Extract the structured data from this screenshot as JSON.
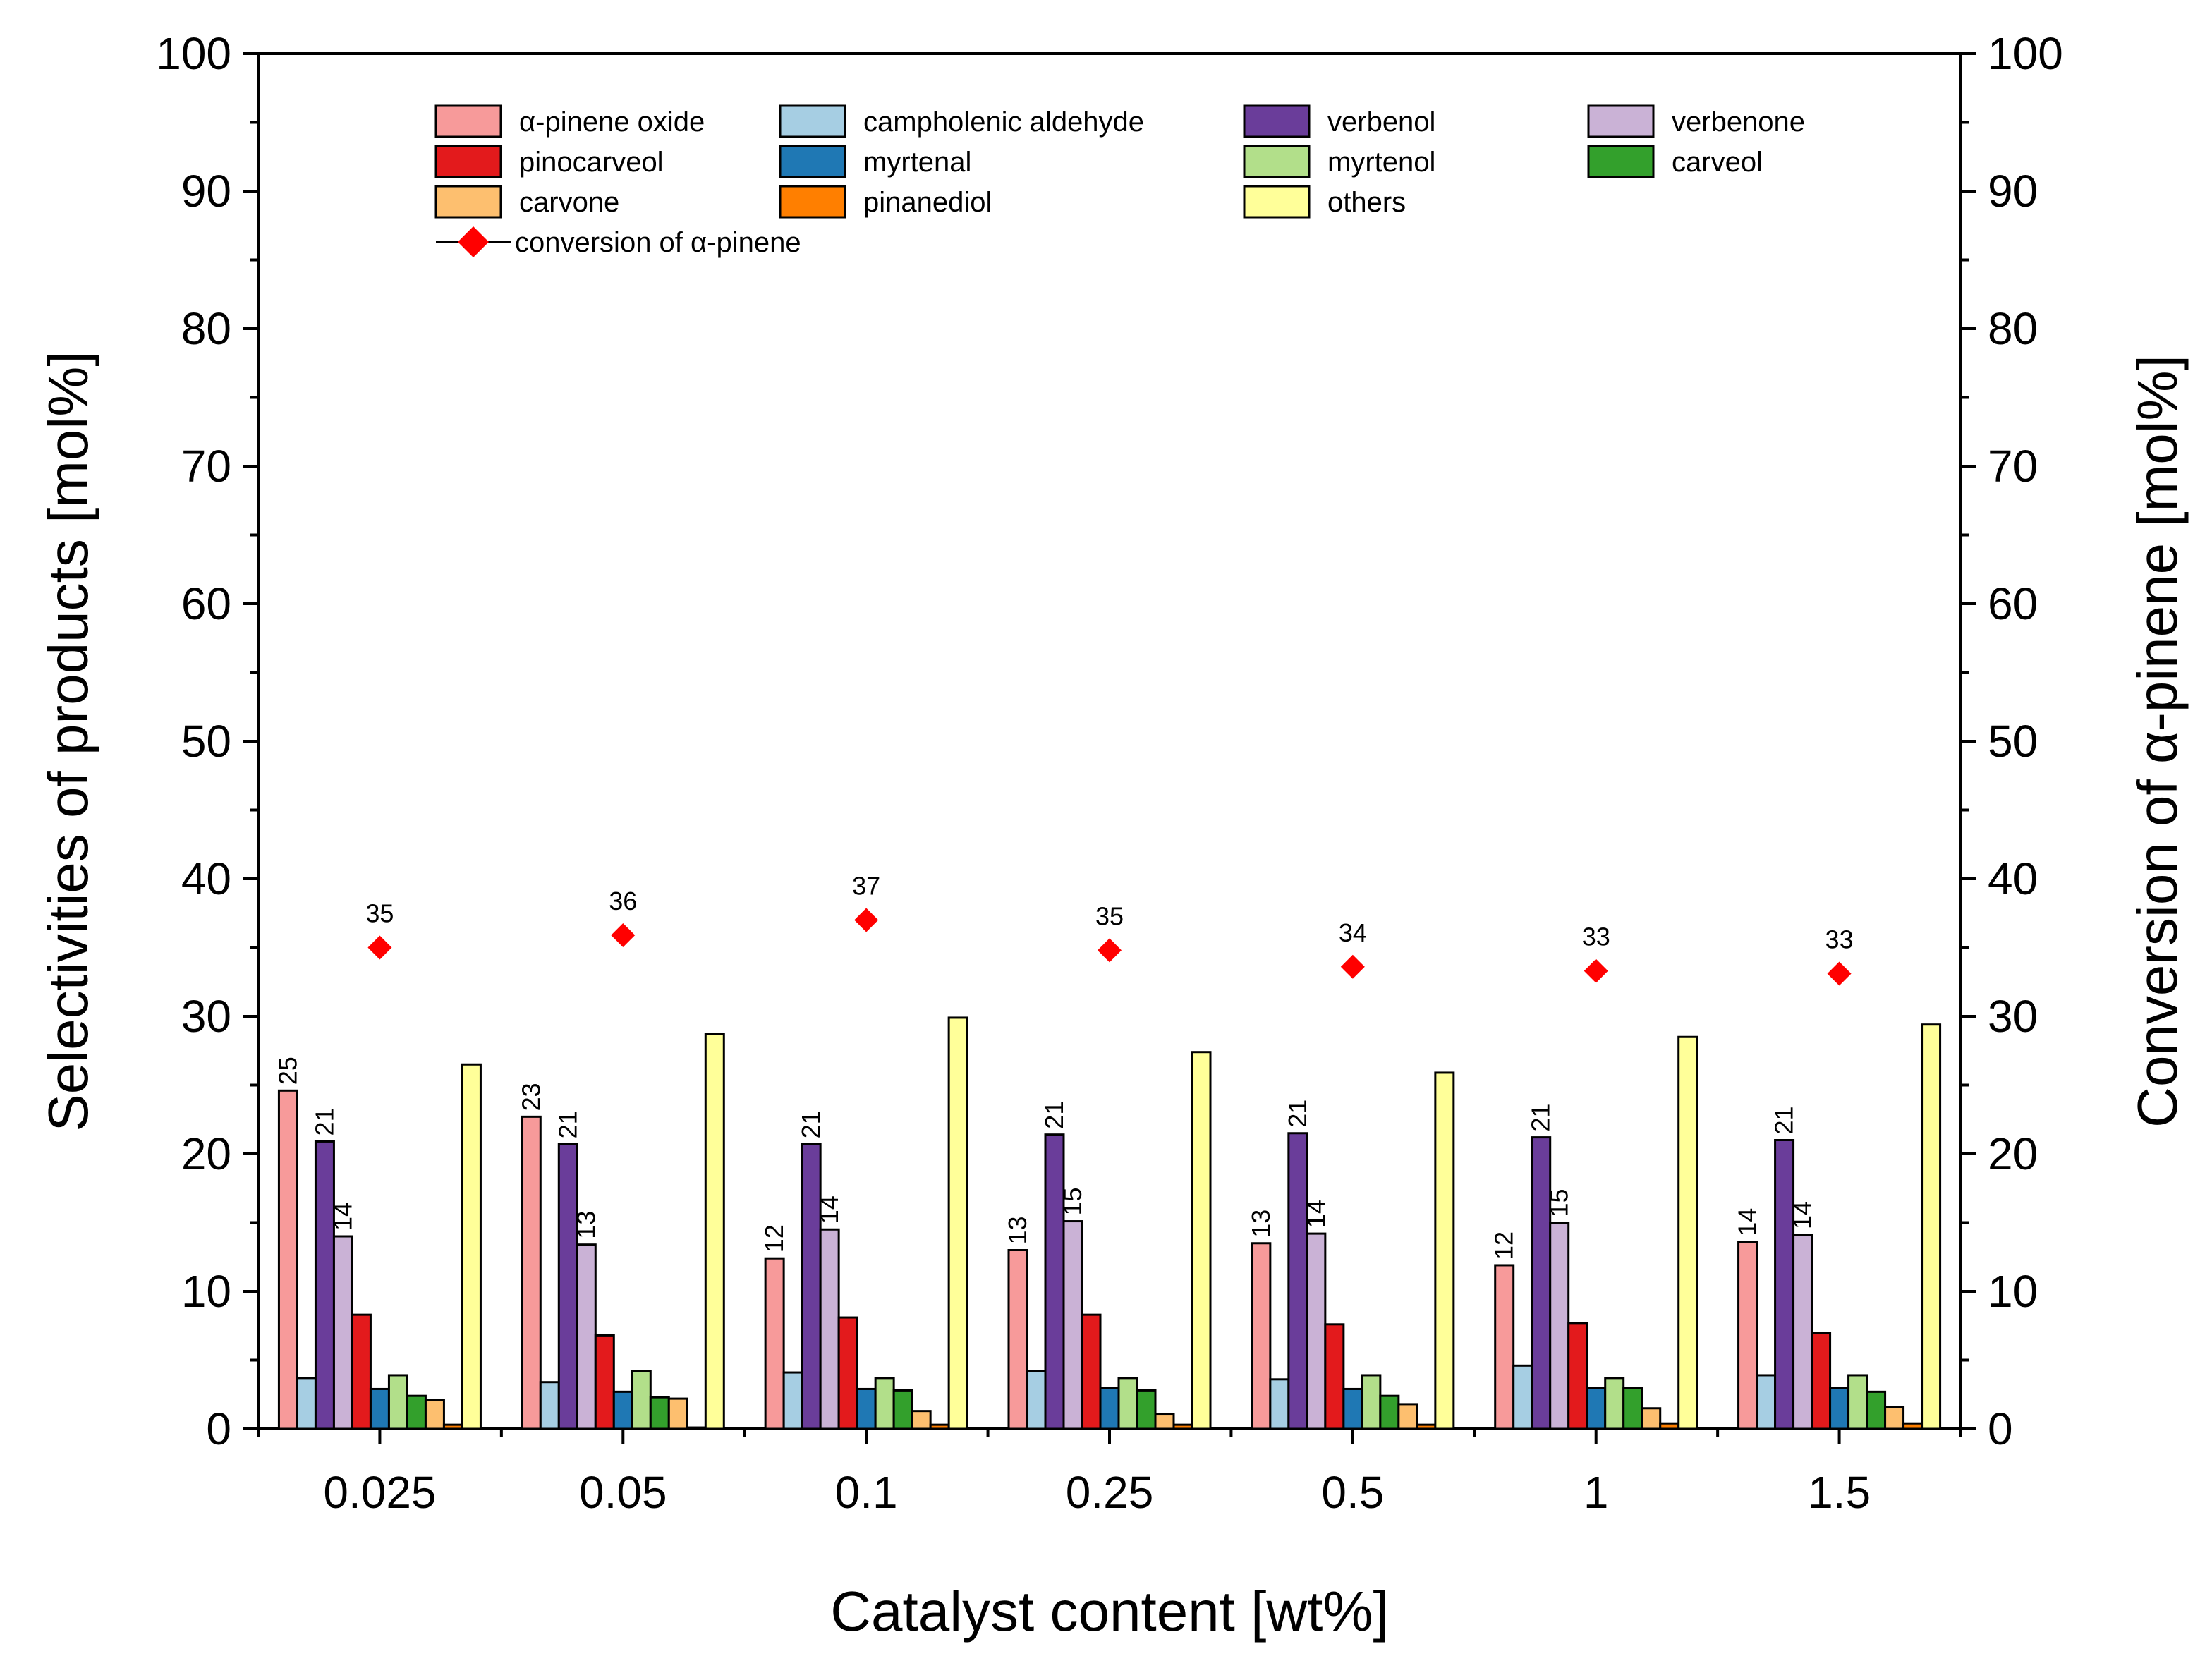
{
  "chart_data": {
    "type": "bar",
    "title": "",
    "xlabel": "Catalyst content [wt%]",
    "ylabel": "Selectivities of products [mol%]",
    "y2label": "Conversion of α-pinene [mol%]",
    "ylim": [
      0,
      100
    ],
    "y2lim": [
      0,
      100
    ],
    "yticks": [
      0,
      10,
      20,
      30,
      40,
      50,
      60,
      70,
      80,
      90,
      100
    ],
    "categories": [
      "0.025",
      "0.05",
      "0.1",
      "0.25",
      "0.5",
      "1",
      "1.5"
    ],
    "legend_position": "top",
    "series": [
      {
        "name": "α-pinene oxide",
        "color": "#f79a9a",
        "values": [
          24.6,
          22.7,
          12.4,
          13.0,
          13.5,
          11.9,
          13.6
        ],
        "labels": [
          "25",
          "23",
          "12",
          "13",
          "13",
          "12",
          "14"
        ]
      },
      {
        "name": "campholenic aldehyde",
        "color": "#a6cee3",
        "values": [
          3.7,
          3.4,
          4.1,
          4.2,
          3.6,
          4.6,
          3.9
        ],
        "labels": []
      },
      {
        "name": "verbenol",
        "color": "#6a3d9a",
        "values": [
          20.9,
          20.7,
          20.7,
          21.4,
          21.5,
          21.2,
          21.0
        ],
        "labels": [
          "21",
          "21",
          "21",
          "21",
          "21",
          "21",
          "21"
        ]
      },
      {
        "name": "verbenone",
        "color": "#cab2d6",
        "values": [
          14.0,
          13.4,
          14.5,
          15.1,
          14.2,
          15.0,
          14.1
        ],
        "labels": [
          "14",
          "13",
          "14",
          "15",
          "14",
          "15",
          "14"
        ]
      },
      {
        "name": "pinocarveol",
        "color": "#e31a1c",
        "values": [
          8.3,
          6.8,
          8.1,
          8.3,
          7.6,
          7.7,
          7.0
        ],
        "labels": []
      },
      {
        "name": "myrtenal",
        "color": "#1f78b4",
        "values": [
          2.9,
          2.7,
          2.9,
          3.0,
          2.9,
          3.0,
          3.0
        ],
        "labels": []
      },
      {
        "name": "myrtenol",
        "color": "#b2df8a",
        "values": [
          3.9,
          4.2,
          3.7,
          3.7,
          3.9,
          3.7,
          3.9
        ],
        "labels": []
      },
      {
        "name": "carveol",
        "color": "#33a02c",
        "values": [
          2.4,
          2.3,
          2.8,
          2.8,
          2.4,
          3.0,
          2.7
        ],
        "labels": []
      },
      {
        "name": "carvone",
        "color": "#fdbf6f",
        "values": [
          2.1,
          2.2,
          1.3,
          1.1,
          1.8,
          1.5,
          1.6
        ],
        "labels": []
      },
      {
        "name": "pinanediol",
        "color": "#ff7f00",
        "values": [
          0.3,
          0.1,
          0.3,
          0.3,
          0.3,
          0.4,
          0.4
        ],
        "labels": []
      },
      {
        "name": "others",
        "color": "#ffff99",
        "values": [
          26.5,
          28.7,
          29.9,
          27.4,
          25.9,
          28.5,
          29.4
        ],
        "labels": []
      }
    ],
    "line_series": {
      "name": "conversion of α-pinene",
      "color": "#ff0000",
      "axis": "right",
      "values": [
        35.0,
        35.9,
        37.0,
        34.8,
        33.6,
        33.3,
        33.1
      ],
      "labels": [
        "35",
        "36",
        "37",
        "35",
        "34",
        "33",
        "33"
      ]
    }
  }
}
